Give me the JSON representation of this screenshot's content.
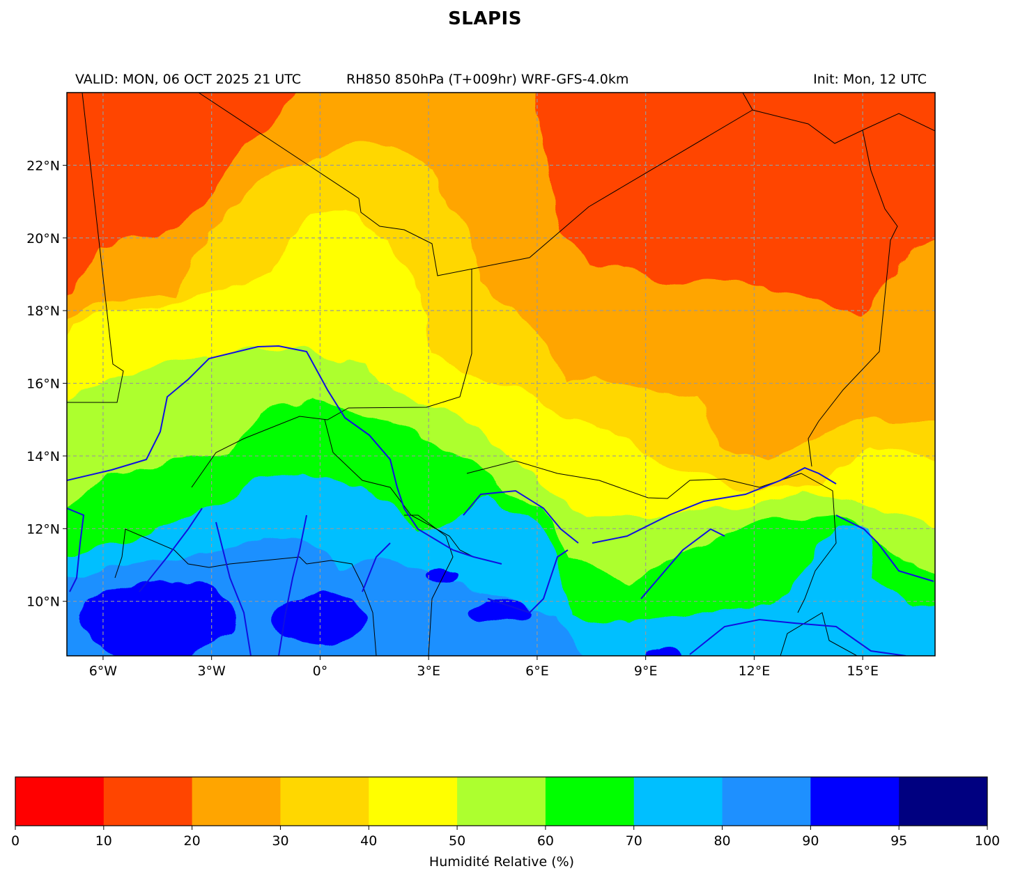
{
  "title": "SLAPIS",
  "header": {
    "valid": "VALID: MON, 06 OCT 2025 21 UTC",
    "product": "RH850 850hPa (T+009hr) WRF-GFS-4.0km",
    "init": "Init: Mon, 12 UTC"
  },
  "map": {
    "lon_range": [
      -7,
      17
    ],
    "lat_range": [
      8.5,
      24
    ],
    "lon_ticks": [
      {
        "value": -6,
        "label": "6°W"
      },
      {
        "value": -3,
        "label": "3°W"
      },
      {
        "value": 0,
        "label": "0°"
      },
      {
        "value": 3,
        "label": "3°E"
      },
      {
        "value": 6,
        "label": "6°E"
      },
      {
        "value": 9,
        "label": "9°E"
      },
      {
        "value": 12,
        "label": "12°E"
      },
      {
        "value": 15,
        "label": "15°E"
      }
    ],
    "lat_ticks": [
      {
        "value": 10,
        "label": "10°N"
      },
      {
        "value": 12,
        "label": "12°N"
      },
      {
        "value": 14,
        "label": "14°N"
      },
      {
        "value": 16,
        "label": "16°N"
      },
      {
        "value": 18,
        "label": "18°N"
      },
      {
        "value": 20,
        "label": "20°N"
      },
      {
        "value": 22,
        "label": "22°N"
      }
    ],
    "grid": true,
    "border_color": "#000000",
    "river_color": "#1010e0"
  },
  "colorbar": {
    "label": "Humidité Relative (%)",
    "ticks": [
      "0",
      "10",
      "20",
      "30",
      "40",
      "50",
      "60",
      "70",
      "80",
      "90",
      "95",
      "100"
    ],
    "colors": [
      "#ff0000",
      "#ff4500",
      "#ffa500",
      "#ffd700",
      "#ffff00",
      "#adff2f",
      "#00ff00",
      "#00bfff",
      "#1e90ff",
      "#0000ff",
      "#000080"
    ]
  }
}
